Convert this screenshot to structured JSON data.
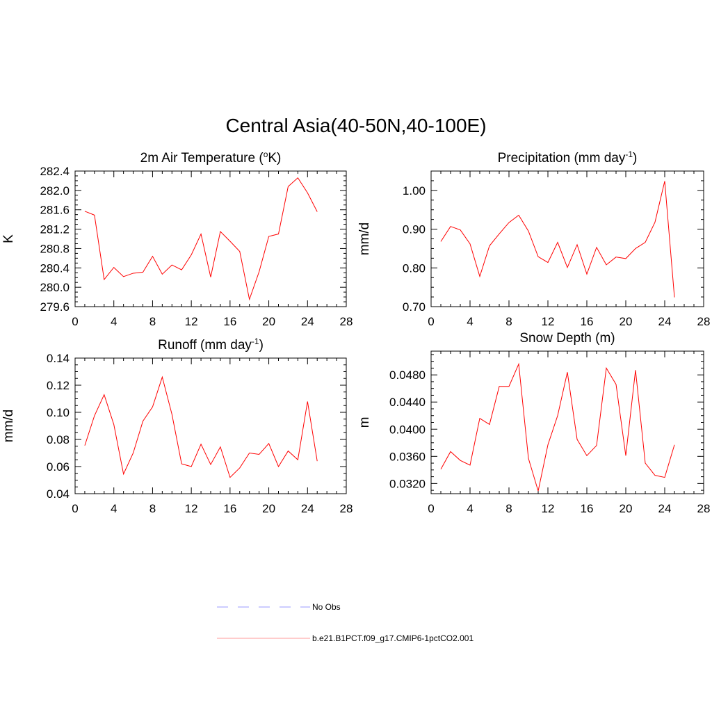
{
  "title": "Central Asia(40-50N,40-100E)",
  "legend": {
    "entries": [
      {
        "label": "No Obs",
        "color": "#9999ff",
        "dashed": true
      },
      {
        "label": "b.e21.B1PCT.f09_g17.CMIP6-1pctCO2.001",
        "color": "#ff9999",
        "dashed": false
      }
    ]
  },
  "chart_data": [
    {
      "type": "line",
      "title_main": "2m Air Temperature (",
      "title_sup1": "o",
      "title_mid": "K)",
      "title_sup2": "",
      "title_end": "",
      "ylabel": "K",
      "xlim": [
        0,
        28
      ],
      "ylim": [
        279.6,
        282.4
      ],
      "xticks": [
        0,
        4,
        8,
        12,
        16,
        20,
        24,
        28
      ],
      "yticks": [
        279.6,
        280.0,
        280.4,
        280.8,
        281.2,
        281.6,
        282.0,
        282.4
      ],
      "ytick_decimals": 1,
      "line_color": "#ff0000",
      "series": [
        {
          "x": [
            1,
            2,
            3,
            4,
            5,
            6,
            7,
            8,
            9,
            10,
            11,
            12,
            13,
            14,
            15,
            16,
            17,
            18,
            19,
            20,
            21,
            22,
            23,
            24,
            25
          ],
          "values": [
            281.57,
            281.49,
            280.16,
            280.41,
            280.22,
            280.29,
            280.31,
            280.64,
            280.27,
            280.46,
            280.36,
            280.67,
            281.1,
            280.21,
            281.15,
            280.95,
            280.74,
            279.75,
            280.32,
            281.05,
            281.1,
            282.08,
            282.26,
            281.95,
            281.56
          ]
        }
      ]
    },
    {
      "type": "line",
      "title_main": "Precipitation (mm day",
      "title_sup1": "-1",
      "title_mid": ")",
      "title_sup2": "",
      "title_end": "",
      "ylabel": "mm/d",
      "xlim": [
        0,
        28
      ],
      "ylim": [
        0.7,
        1.05
      ],
      "xticks": [
        0,
        4,
        8,
        12,
        16,
        20,
        24,
        28
      ],
      "yticks": [
        0.7,
        0.8,
        0.9,
        1.0
      ],
      "ytick_decimals": 2,
      "line_color": "#ff0000",
      "series": [
        {
          "x": [
            1,
            2,
            3,
            4,
            5,
            6,
            7,
            8,
            9,
            10,
            11,
            12,
            13,
            14,
            15,
            16,
            17,
            18,
            19,
            20,
            21,
            22,
            23,
            24,
            25
          ],
          "values": [
            0.868,
            0.907,
            0.898,
            0.862,
            0.778,
            0.857,
            0.888,
            0.917,
            0.936,
            0.895,
            0.829,
            0.814,
            0.866,
            0.801,
            0.86,
            0.784,
            0.853,
            0.808,
            0.828,
            0.824,
            0.85,
            0.866,
            0.918,
            1.024,
            0.724
          ]
        }
      ]
    },
    {
      "type": "line",
      "title_main": "Runoff (mm day",
      "title_sup1": "-1",
      "title_mid": ")",
      "title_sup2": "",
      "title_end": "",
      "ylabel": "mm/d",
      "xlim": [
        0,
        28
      ],
      "ylim": [
        0.04,
        0.14
      ],
      "xticks": [
        0,
        4,
        8,
        12,
        16,
        20,
        24,
        28
      ],
      "yticks": [
        0.04,
        0.06,
        0.08,
        0.1,
        0.12,
        0.14
      ],
      "ytick_decimals": 2,
      "line_color": "#ff0000",
      "series": [
        {
          "x": [
            1,
            2,
            3,
            4,
            5,
            6,
            7,
            8,
            9,
            10,
            11,
            12,
            13,
            14,
            15,
            16,
            17,
            18,
            19,
            20,
            21,
            22,
            23,
            24,
            25
          ],
          "values": [
            0.0755,
            0.0975,
            0.113,
            0.091,
            0.0545,
            0.07,
            0.0935,
            0.104,
            0.126,
            0.0985,
            0.062,
            0.06,
            0.0765,
            0.0615,
            0.0745,
            0.052,
            0.059,
            0.07,
            0.069,
            0.077,
            0.06,
            0.0715,
            0.065,
            0.108,
            0.064
          ]
        }
      ]
    },
    {
      "type": "line",
      "title_main": "Snow Depth (m)",
      "title_sup1": "",
      "title_mid": "",
      "title_sup2": "",
      "title_end": "",
      "ylabel": "m",
      "xlim": [
        0,
        28
      ],
      "ylim": [
        0.0305,
        0.0515
      ],
      "xticks": [
        0,
        4,
        8,
        12,
        16,
        20,
        24,
        28
      ],
      "yticks": [
        0.032,
        0.036,
        0.04,
        0.044,
        0.048
      ],
      "ytick_decimals": 4,
      "line_color": "#ff0000",
      "series": [
        {
          "x": [
            1,
            2,
            3,
            4,
            5,
            6,
            7,
            8,
            9,
            10,
            11,
            12,
            13,
            14,
            15,
            16,
            17,
            18,
            19,
            20,
            21,
            22,
            23,
            24,
            25
          ],
          "values": [
            0.0341,
            0.0367,
            0.0354,
            0.0347,
            0.0416,
            0.0407,
            0.0463,
            0.0463,
            0.0496,
            0.0357,
            0.0309,
            0.0377,
            0.042,
            0.0484,
            0.0385,
            0.0361,
            0.0376,
            0.049,
            0.0466,
            0.0361,
            0.0487,
            0.035,
            0.0332,
            0.0329,
            0.0377
          ]
        }
      ]
    }
  ]
}
